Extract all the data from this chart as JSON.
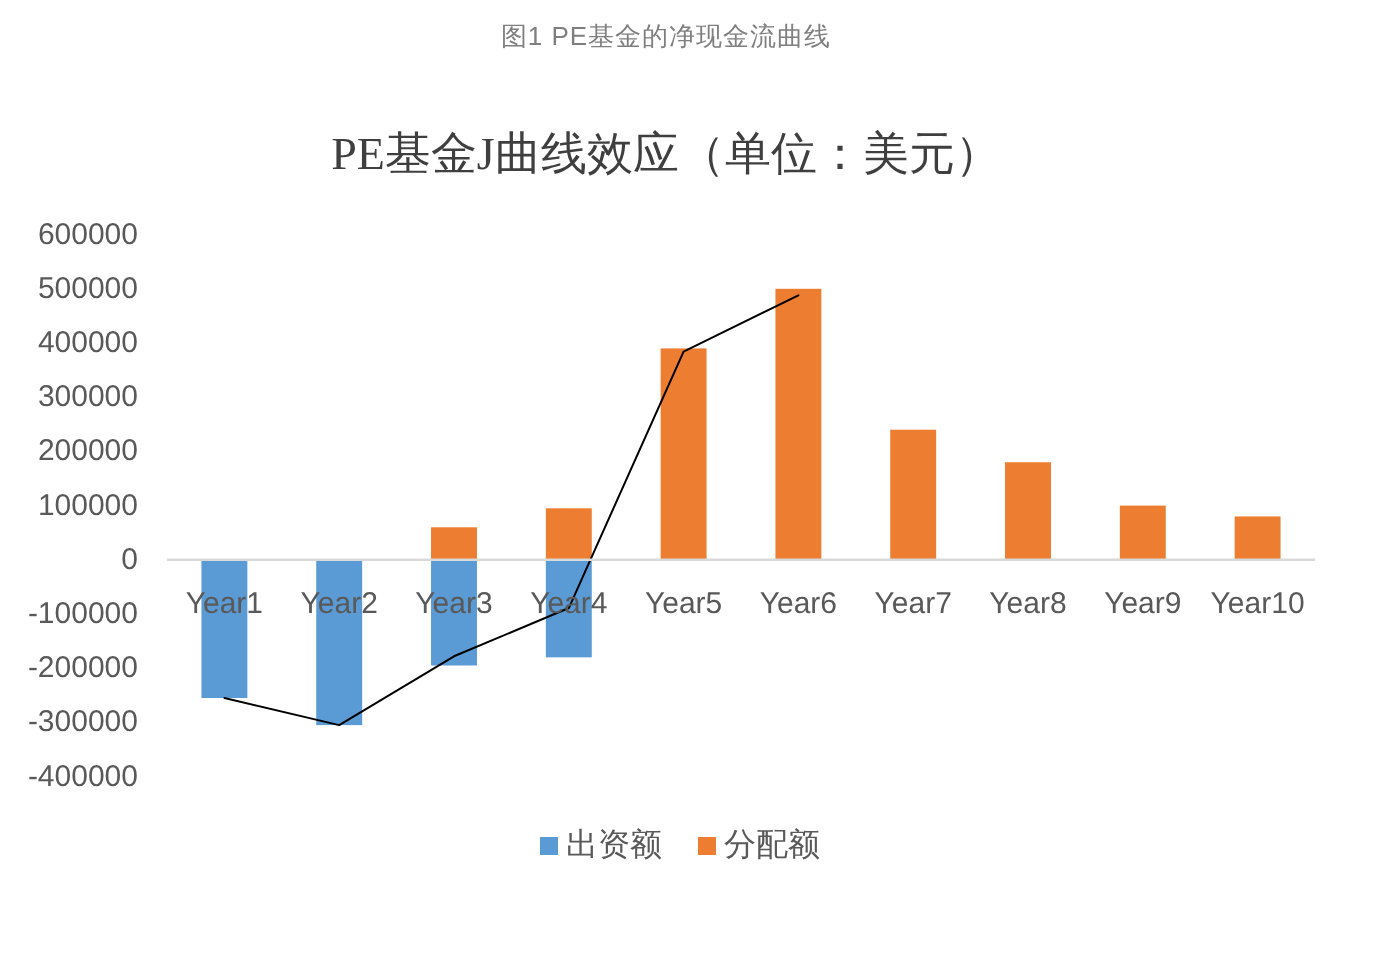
{
  "chart_data": {
    "type": "bar",
    "title": "PE基金J曲线效应（单位：美元）",
    "annotations": [
      "图1 PE基金的净现金流曲线"
    ],
    "categories": [
      "Year1",
      "Year2",
      "Year3",
      "Year4",
      "Year5",
      "Year6",
      "Year7",
      "Year8",
      "Year9",
      "Year10"
    ],
    "series": [
      {
        "name": "出资额",
        "color": "#5b9bd5",
        "values": [
          -255000,
          -305000,
          -195000,
          -180000,
          null,
          null,
          null,
          null,
          null,
          null
        ]
      },
      {
        "name": "分配额",
        "color": "#ed7d31",
        "values": [
          null,
          null,
          60000,
          95000,
          390000,
          500000,
          240000,
          180000,
          100000,
          80000
        ]
      },
      {
        "type": "line",
        "color": "#000000",
        "values": [
          -255000,
          -305000,
          -178000,
          -89000,
          384000,
          488000,
          null,
          null,
          null,
          null
        ]
      }
    ],
    "stacked": true,
    "ylim": [
      -400000,
      600000
    ],
    "yticks": [
      -400000,
      -300000,
      -200000,
      -100000,
      0,
      100000,
      200000,
      300000,
      400000,
      500000,
      600000
    ],
    "legend": "bottom"
  }
}
